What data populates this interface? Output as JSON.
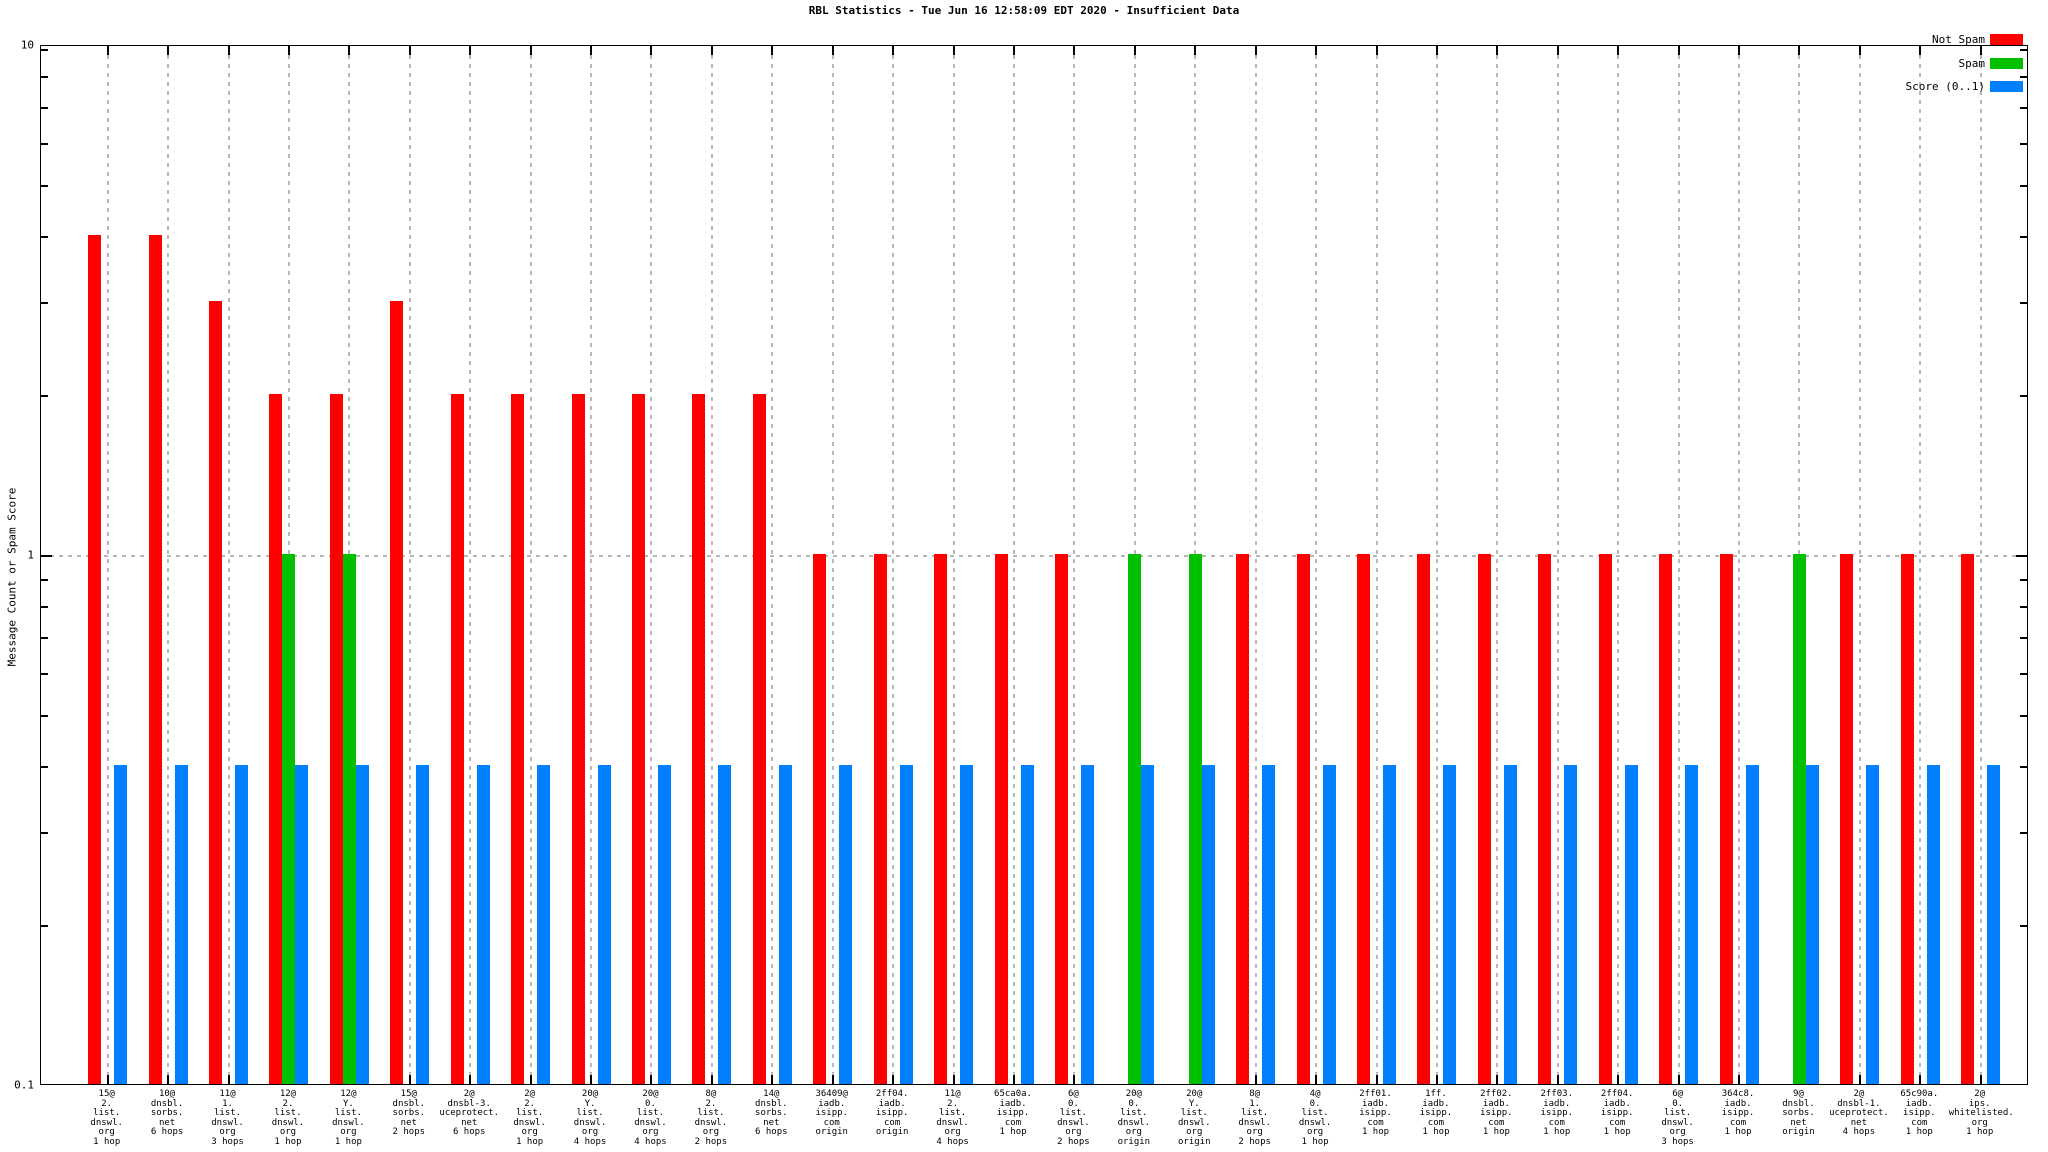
{
  "title": "RBL Statistics - Tue Jun 16 12:58:09 EDT 2020 - Insufficient Data",
  "y_axis": {
    "label": "Message Count or Spam Score",
    "scale": "log",
    "min": 0.1,
    "max": 10,
    "tick_labels": [
      "10",
      "1",
      "0.1"
    ]
  },
  "legend": {
    "position": "top-right",
    "entries": [
      {
        "label": "Not Spam",
        "color": "#ff0000"
      },
      {
        "label": "Spam",
        "color": "#00c000"
      },
      {
        "label": "Score (0..1)",
        "color": "#0080ff"
      }
    ]
  },
  "chart_data": {
    "type": "bar",
    "yscale": "log",
    "ylim": [
      0.1,
      10
    ],
    "grid": true,
    "title": "RBL Statistics - Tue Jun 16 12:58:09 EDT 2020 - Insufficient Data",
    "ylabel": "Message Count or Spam Score",
    "categories": [
      [
        "15@",
        "2.",
        "list.",
        "dnswl.",
        "org",
        "1 hop"
      ],
      [
        "10@",
        "dnsbl.",
        "sorbs.",
        "net",
        "6 hops"
      ],
      [
        "11@",
        "1.",
        "list.",
        "dnswl.",
        "org",
        "3 hops"
      ],
      [
        "12@",
        "2.",
        "list.",
        "dnswl.",
        "org",
        "1 hop"
      ],
      [
        "12@",
        "Y.",
        "list.",
        "dnswl.",
        "org",
        "1 hop"
      ],
      [
        "15@",
        "dnsbl.",
        "sorbs.",
        "net",
        "2 hops"
      ],
      [
        "2@",
        "dnsbl-3.",
        "uceprotect.",
        "net",
        "6 hops"
      ],
      [
        "2@",
        "2.",
        "list.",
        "dnswl.",
        "org",
        "1 hop"
      ],
      [
        "20@",
        "Y.",
        "list.",
        "dnswl.",
        "org",
        "4 hops"
      ],
      [
        "20@",
        "0.",
        "list.",
        "dnswl.",
        "org",
        "4 hops"
      ],
      [
        "8@",
        "2.",
        "list.",
        "dnswl.",
        "org",
        "2 hops"
      ],
      [
        "14@",
        "dnsbl.",
        "sorbs.",
        "net",
        "6 hops"
      ],
      [
        "36409@",
        "iadb.",
        "isipp.",
        "com",
        "origin"
      ],
      [
        "2ff04.",
        "iadb.",
        "isipp.",
        "com",
        "origin"
      ],
      [
        "11@",
        "2.",
        "list.",
        "dnswl.",
        "org",
        "4 hops"
      ],
      [
        "65ca0a.",
        "iadb.",
        "isipp.",
        "com",
        "1 hop"
      ],
      [
        "6@",
        "0.",
        "list.",
        "dnswl.",
        "org",
        "2 hops"
      ],
      [
        "20@",
        "0.",
        "list.",
        "dnswl.",
        "org",
        "origin"
      ],
      [
        "20@",
        "Y.",
        "list.",
        "dnswl.",
        "org",
        "origin"
      ],
      [
        "8@",
        "1.",
        "list.",
        "dnswl.",
        "org",
        "2 hops"
      ],
      [
        "4@",
        "0.",
        "list.",
        "dnswl.",
        "org",
        "1 hop"
      ],
      [
        "2ff01.",
        "iadb.",
        "isipp.",
        "com",
        "1 hop"
      ],
      [
        "1ff.",
        "iadb.",
        "isipp.",
        "com",
        "1 hop"
      ],
      [
        "2ff02.",
        "iadb.",
        "isipp.",
        "com",
        "1 hop"
      ],
      [
        "2ff03.",
        "iadb.",
        "isipp.",
        "com",
        "1 hop"
      ],
      [
        "2ff04.",
        "iadb.",
        "isipp.",
        "com",
        "1 hop"
      ],
      [
        "6@",
        "0.",
        "list.",
        "dnswl.",
        "org",
        "3 hops"
      ],
      [
        "364c8.",
        "iadb.",
        "isipp.",
        "com",
        "1 hop"
      ],
      [
        "9@",
        "dnsbl.",
        "sorbs.",
        "net",
        "origin"
      ],
      [
        "2@",
        "dnsbl-1.",
        "uceprotect.",
        "net",
        "4 hops"
      ],
      [
        "65c90a.",
        "iadb.",
        "isipp.",
        "com",
        "1 hop"
      ],
      [
        "2@",
        "ips.",
        "whitelisted.",
        "org",
        "1 hop"
      ]
    ],
    "series": [
      {
        "name": "Not Spam",
        "color": "#ff0000",
        "values": [
          4,
          4,
          3,
          2,
          2,
          3,
          2,
          2,
          2,
          2,
          2,
          2,
          1,
          1,
          1,
          1,
          1,
          null,
          null,
          1,
          1,
          1,
          1,
          1,
          1,
          1,
          1,
          1,
          null,
          1,
          1,
          1
        ]
      },
      {
        "name": "Spam",
        "color": "#00c000",
        "values": [
          null,
          null,
          null,
          1,
          1,
          null,
          null,
          null,
          null,
          null,
          null,
          null,
          null,
          null,
          null,
          null,
          null,
          1,
          1,
          null,
          null,
          null,
          null,
          null,
          null,
          null,
          null,
          null,
          1,
          null,
          null,
          null
        ]
      },
      {
        "name": "Score (0..1)",
        "color": "#0080ff",
        "values": [
          0.4,
          0.4,
          0.4,
          0.4,
          0.4,
          0.4,
          0.4,
          0.4,
          0.4,
          0.4,
          0.4,
          0.4,
          0.4,
          0.4,
          0.4,
          0.4,
          0.4,
          0.4,
          0.4,
          0.4,
          0.4,
          0.4,
          0.4,
          0.4,
          0.4,
          0.4,
          0.4,
          0.4,
          0.4,
          0.4,
          0.4,
          0.4
        ]
      }
    ]
  }
}
